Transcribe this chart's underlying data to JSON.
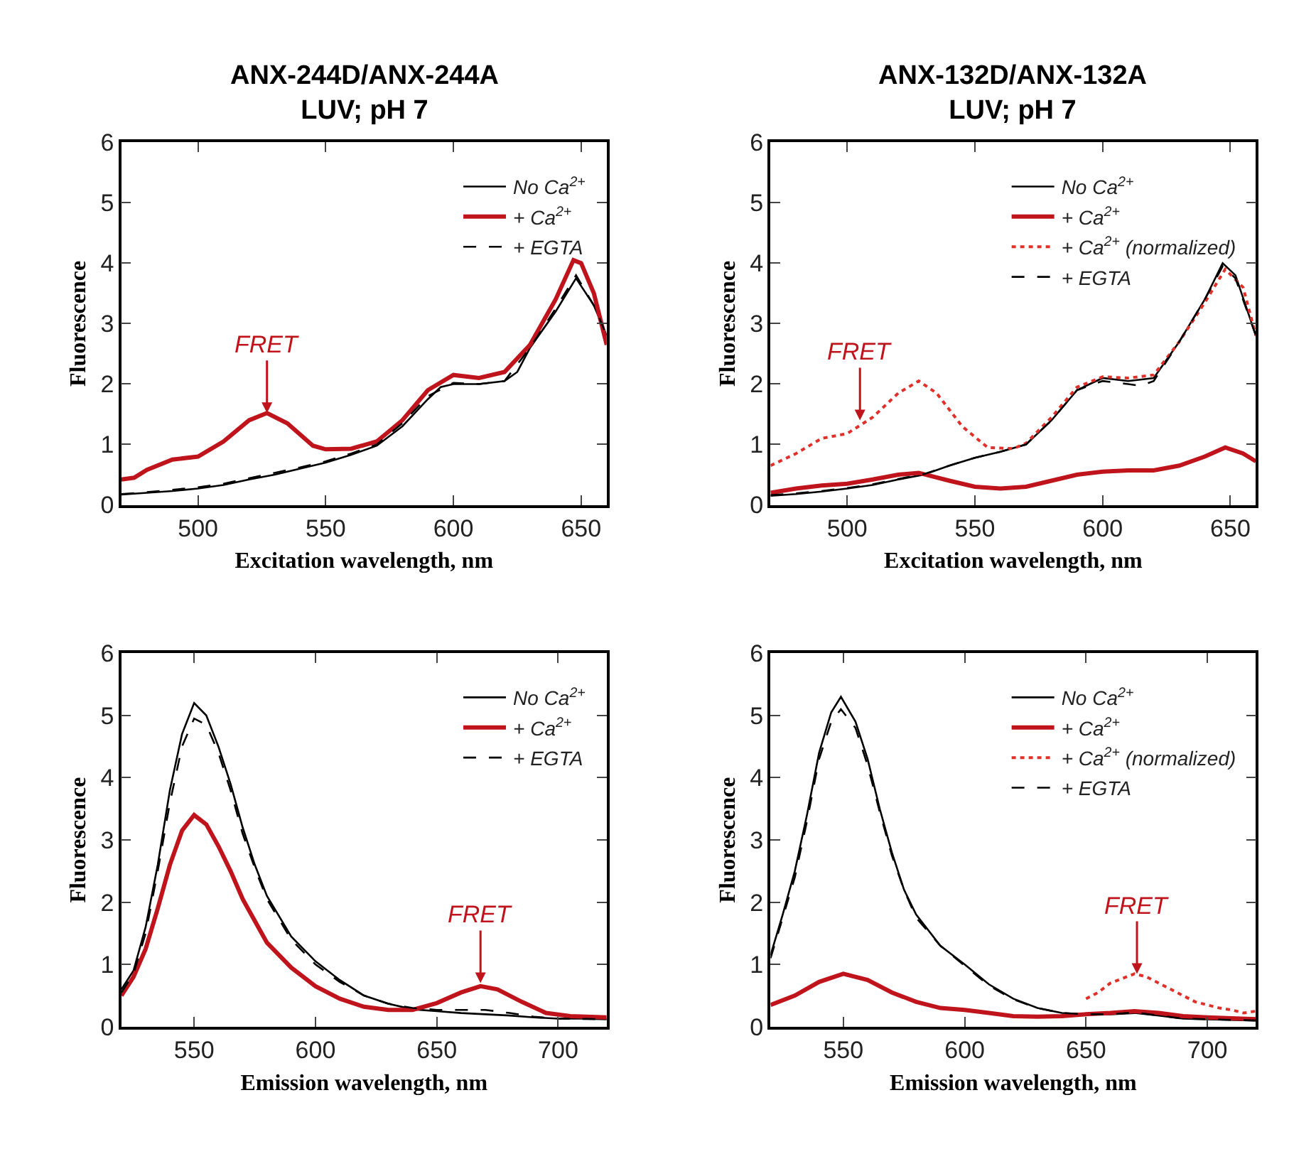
{
  "chart_data": [
    {
      "type": "line",
      "title": "ANX-244D/ANX-244A\nLUV; pH 7",
      "xlabel": "Excitation wavelength, nm",
      "ylabel": "Fluorescence",
      "xlim": [
        470,
        660
      ],
      "xticks": [
        500,
        550,
        600,
        650
      ],
      "ylim": [
        0,
        6
      ],
      "yticks": [
        0,
        1,
        2,
        3,
        4,
        5,
        6
      ],
      "grid": false,
      "legend": "top right",
      "marker": "none",
      "annotations": [
        {
          "text": "FRET",
          "x": 527,
          "y": 1.52
        }
      ],
      "series": [
        {
          "name": "No Ca$^{2+}$",
          "color": "#000000",
          "line_style": "solid",
          "x": [
            470,
            480,
            490,
            500,
            510,
            520,
            530,
            540,
            550,
            560,
            570,
            580,
            590,
            595,
            600,
            610,
            620,
            625,
            630,
            640,
            648,
            655,
            660
          ],
          "values": [
            0.17,
            0.2,
            0.23,
            0.27,
            0.33,
            0.42,
            0.5,
            0.6,
            0.7,
            0.83,
            0.98,
            1.3,
            1.75,
            1.95,
            2.0,
            2.0,
            2.05,
            2.2,
            2.6,
            3.2,
            3.75,
            3.3,
            2.8
          ]
        },
        {
          "name": "+ Ca$^{2+}$",
          "color": "#c0141c",
          "line_style": "solid",
          "x": [
            470,
            475,
            480,
            490,
            500,
            510,
            520,
            527,
            535,
            545,
            550,
            560,
            570,
            580,
            590,
            600,
            610,
            620,
            630,
            640,
            647,
            650,
            655,
            660
          ],
          "values": [
            0.42,
            0.45,
            0.58,
            0.75,
            0.8,
            1.05,
            1.4,
            1.52,
            1.35,
            0.98,
            0.92,
            0.93,
            1.05,
            1.4,
            1.9,
            2.15,
            2.1,
            2.2,
            2.65,
            3.4,
            4.05,
            4.0,
            3.5,
            2.65
          ]
        },
        {
          "name": "+ EGTA",
          "color": "#000000",
          "line_style": "dashed",
          "x": [
            470,
            480,
            490,
            500,
            510,
            520,
            530,
            540,
            550,
            560,
            570,
            580,
            590,
            600,
            610,
            620,
            630,
            640,
            648,
            655,
            660
          ],
          "values": [
            0.18,
            0.21,
            0.25,
            0.29,
            0.35,
            0.44,
            0.53,
            0.62,
            0.72,
            0.85,
            1.0,
            1.35,
            1.8,
            2.02,
            2.0,
            2.05,
            2.6,
            3.25,
            3.8,
            3.3,
            2.8
          ]
        }
      ]
    },
    {
      "type": "line",
      "title": "ANX-132D/ANX-132A\nLUV; pH 7",
      "xlabel": "Excitation wavelength, nm",
      "ylabel": "Fluorescence",
      "xlim": [
        470,
        660
      ],
      "xticks": [
        500,
        550,
        600,
        650
      ],
      "ylim": [
        0,
        6
      ],
      "yticks": [
        0,
        1,
        2,
        3,
        4,
        5,
        6
      ],
      "grid": false,
      "legend": "top right",
      "marker": "none",
      "annotations": [
        {
          "text": "FRET",
          "x": 505,
          "y": 1.4
        }
      ],
      "series": [
        {
          "name": "No Ca$^{2+}$",
          "color": "#000000",
          "line_style": "solid",
          "x": [
            470,
            480,
            490,
            500,
            510,
            520,
            530,
            540,
            550,
            560,
            570,
            580,
            590,
            600,
            610,
            620,
            630,
            640,
            647,
            652,
            660
          ],
          "values": [
            0.15,
            0.18,
            0.22,
            0.27,
            0.33,
            0.42,
            0.5,
            0.65,
            0.78,
            0.88,
            1.0,
            1.4,
            1.9,
            2.1,
            2.05,
            2.1,
            2.7,
            3.4,
            4.0,
            3.8,
            2.8
          ]
        },
        {
          "name": "+ Ca$^{2+}$",
          "color": "#c0141c",
          "line_style": "solid",
          "x": [
            470,
            480,
            490,
            500,
            510,
            520,
            528,
            540,
            550,
            560,
            570,
            580,
            590,
            600,
            610,
            620,
            630,
            640,
            648,
            655,
            660
          ],
          "values": [
            0.2,
            0.27,
            0.32,
            0.35,
            0.42,
            0.5,
            0.53,
            0.4,
            0.3,
            0.27,
            0.3,
            0.4,
            0.5,
            0.55,
            0.57,
            0.57,
            0.65,
            0.8,
            0.95,
            0.85,
            0.72
          ]
        },
        {
          "name": "+ Ca$^{2+}$ (normalized)",
          "color": "#e0302a",
          "line_style": "dotted",
          "x": [
            470,
            480,
            490,
            500,
            510,
            520,
            528,
            535,
            545,
            555,
            565,
            570,
            580,
            590,
            600,
            610,
            620,
            630,
            640,
            648,
            655,
            660
          ],
          "values": [
            0.65,
            0.85,
            1.1,
            1.18,
            1.45,
            1.85,
            2.05,
            1.85,
            1.3,
            0.95,
            0.93,
            1.02,
            1.45,
            1.95,
            2.12,
            2.1,
            2.15,
            2.7,
            3.35,
            3.9,
            3.6,
            2.8
          ]
        },
        {
          "name": "+ EGTA",
          "color": "#000000",
          "line_style": "dashed",
          "x": [
            470,
            480,
            490,
            500,
            510,
            520,
            530,
            540,
            550,
            560,
            570,
            580,
            590,
            600,
            610,
            615,
            620,
            630,
            640,
            647,
            652,
            660
          ],
          "values": [
            0.16,
            0.19,
            0.23,
            0.28,
            0.34,
            0.43,
            0.51,
            0.65,
            0.78,
            0.88,
            1.0,
            1.4,
            1.9,
            2.05,
            2.0,
            1.97,
            2.05,
            2.7,
            3.4,
            3.95,
            3.75,
            2.8
          ]
        }
      ]
    },
    {
      "type": "line",
      "xlabel": "Emission wavelength, nm",
      "ylabel": "Fluorescence",
      "xlim": [
        520,
        720
      ],
      "xticks": [
        550,
        600,
        650,
        700
      ],
      "ylim": [
        0,
        6
      ],
      "yticks": [
        0,
        1,
        2,
        3,
        4,
        5,
        6
      ],
      "grid": false,
      "legend": "top right",
      "marker": "none",
      "annotations": [
        {
          "text": "FRET",
          "x": 668,
          "y": 0.7
        }
      ],
      "series": [
        {
          "name": "No Ca$^{2+}$",
          "color": "#000000",
          "line_style": "solid",
          "x": [
            520,
            525,
            530,
            535,
            540,
            545,
            550,
            555,
            560,
            565,
            570,
            575,
            580,
            590,
            600,
            610,
            620,
            630,
            640,
            650,
            660,
            670,
            680,
            690,
            700,
            710,
            720
          ],
          "values": [
            0.6,
            0.9,
            1.6,
            2.6,
            3.8,
            4.7,
            5.2,
            5.0,
            4.5,
            3.9,
            3.2,
            2.6,
            2.1,
            1.45,
            1.05,
            0.75,
            0.5,
            0.37,
            0.28,
            0.25,
            0.22,
            0.2,
            0.18,
            0.15,
            0.13,
            0.13,
            0.12
          ]
        },
        {
          "name": "+ Ca$^{2+}$",
          "color": "#c0141c",
          "line_style": "solid",
          "x": [
            520,
            525,
            530,
            535,
            540,
            545,
            550,
            555,
            560,
            565,
            570,
            575,
            580,
            590,
            600,
            610,
            620,
            630,
            640,
            650,
            660,
            668,
            675,
            685,
            695,
            705,
            720
          ],
          "values": [
            0.5,
            0.8,
            1.25,
            1.9,
            2.6,
            3.15,
            3.4,
            3.25,
            2.9,
            2.5,
            2.05,
            1.7,
            1.35,
            0.95,
            0.65,
            0.45,
            0.32,
            0.27,
            0.27,
            0.38,
            0.55,
            0.65,
            0.6,
            0.4,
            0.22,
            0.17,
            0.15
          ]
        },
        {
          "name": "+ EGTA",
          "color": "#000000",
          "line_style": "dashed",
          "x": [
            520,
            525,
            530,
            535,
            540,
            545,
            550,
            555,
            560,
            565,
            570,
            575,
            580,
            590,
            600,
            610,
            620,
            630,
            640,
            650,
            660,
            670,
            680,
            690,
            700,
            720
          ],
          "values": [
            0.55,
            0.85,
            1.5,
            2.5,
            3.6,
            4.5,
            4.95,
            4.85,
            4.4,
            3.8,
            3.1,
            2.55,
            2.05,
            1.4,
            1.0,
            0.72,
            0.5,
            0.37,
            0.3,
            0.27,
            0.27,
            0.27,
            0.22,
            0.16,
            0.13,
            0.12
          ]
        }
      ]
    },
    {
      "type": "line",
      "xlabel": "Emission wavelength, nm",
      "ylabel": "Fluorescence",
      "xlim": [
        520,
        720
      ],
      "xticks": [
        550,
        600,
        650,
        700
      ],
      "ylim": [
        0,
        6
      ],
      "yticks": [
        0,
        1,
        2,
        3,
        4,
        5,
        6
      ],
      "grid": false,
      "legend": "top right",
      "marker": "none",
      "annotations": [
        {
          "text": "FRET",
          "x": 671,
          "y": 0.85
        }
      ],
      "series": [
        {
          "name": "No Ca$^{2+}$",
          "color": "#000000",
          "line_style": "solid",
          "x": [
            520,
            525,
            530,
            535,
            540,
            545,
            549,
            555,
            560,
            565,
            570,
            575,
            580,
            590,
            600,
            610,
            620,
            630,
            640,
            650,
            660,
            670,
            680,
            690,
            700,
            720
          ],
          "values": [
            1.15,
            1.8,
            2.5,
            3.4,
            4.4,
            5.05,
            5.3,
            4.9,
            4.3,
            3.5,
            2.8,
            2.2,
            1.8,
            1.3,
            1.0,
            0.68,
            0.45,
            0.3,
            0.22,
            0.2,
            0.2,
            0.22,
            0.18,
            0.13,
            0.12,
            0.1
          ]
        },
        {
          "name": "+ Ca$^{2+}$",
          "color": "#c0141c",
          "line_style": "solid",
          "x": [
            520,
            530,
            540,
            550,
            560,
            570,
            580,
            590,
            600,
            610,
            620,
            630,
            640,
            650,
            660,
            670,
            680,
            690,
            700,
            720
          ],
          "values": [
            0.35,
            0.5,
            0.72,
            0.85,
            0.75,
            0.55,
            0.4,
            0.3,
            0.27,
            0.22,
            0.17,
            0.16,
            0.17,
            0.2,
            0.22,
            0.25,
            0.22,
            0.17,
            0.15,
            0.12
          ]
        },
        {
          "name": "+ Ca$^{2+}$ (normalized)",
          "color": "#e0302a",
          "line_style": "dotted",
          "x": [
            650,
            655,
            660,
            670,
            675,
            685,
            695,
            705,
            710,
            715,
            720
          ],
          "values": [
            0.45,
            0.55,
            0.7,
            0.85,
            0.8,
            0.6,
            0.4,
            0.3,
            0.27,
            0.22,
            0.25
          ]
        },
        {
          "name": "+ EGTA",
          "color": "#000000",
          "line_style": "dashed",
          "x": [
            520,
            525,
            530,
            535,
            540,
            545,
            549,
            555,
            560,
            565,
            570,
            575,
            580,
            590,
            600,
            610,
            620,
            630,
            640,
            650,
            660,
            670,
            680,
            690,
            700,
            720
          ],
          "values": [
            1.1,
            1.75,
            2.4,
            3.3,
            4.3,
            4.9,
            5.1,
            4.8,
            4.2,
            3.45,
            2.75,
            2.2,
            1.75,
            1.3,
            0.98,
            0.66,
            0.44,
            0.3,
            0.22,
            0.2,
            0.2,
            0.23,
            0.18,
            0.13,
            0.12,
            0.1
          ]
        }
      ]
    }
  ]
}
